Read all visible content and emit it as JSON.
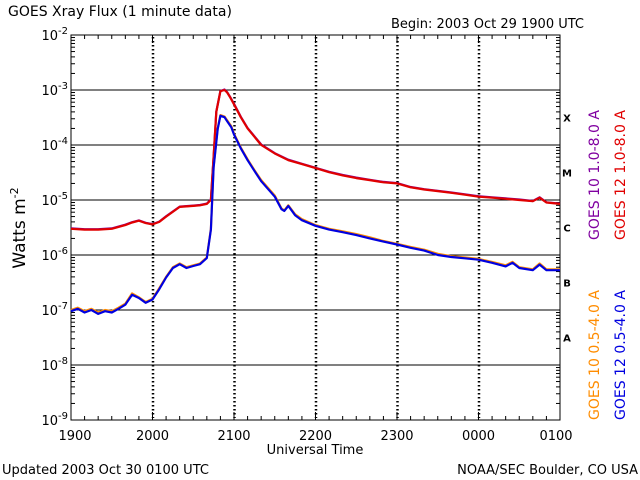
{
  "chart_data": {
    "type": "line",
    "title": "GOES Xray Flux (1 minute data)",
    "begin_label": "Begin: 2003 Oct 29 1900 UTC",
    "ylabel": "Watts m",
    "ylabel_sup": "-2",
    "xlabel": "Universal Time",
    "footer_left": "Updated 2003 Oct 30 0100 UTC",
    "footer_right": "NOAA/SEC Boulder, CO USA",
    "log_scale": true,
    "ylim": [
      1e-09,
      0.01
    ],
    "xlim": [
      0,
      360
    ],
    "x_ticks": [
      {
        "x": 0,
        "label": "1900"
      },
      {
        "x": 60,
        "label": "2000"
      },
      {
        "x": 120,
        "label": "2100"
      },
      {
        "x": 180,
        "label": "2200"
      },
      {
        "x": 240,
        "label": "2300"
      },
      {
        "x": 300,
        "label": "0000"
      },
      {
        "x": 360,
        "label": "0100"
      }
    ],
    "y_ticks": [
      {
        "exp": -9,
        "label": "10",
        "sup": "-9"
      },
      {
        "exp": -8,
        "label": "10",
        "sup": "-8"
      },
      {
        "exp": -7,
        "label": "10",
        "sup": "-7"
      },
      {
        "exp": -6,
        "label": "10",
        "sup": "-6"
      },
      {
        "exp": -5,
        "label": "10",
        "sup": "-5"
      },
      {
        "exp": -4,
        "label": "10",
        "sup": "-4"
      },
      {
        "exp": -3,
        "label": "10",
        "sup": "-3"
      },
      {
        "exp": -2,
        "label": "10",
        "sup": "-2"
      }
    ],
    "flare_classes": [
      {
        "label": "A",
        "center_exp": -7.5
      },
      {
        "label": "B",
        "center_exp": -6.5
      },
      {
        "label": "C",
        "center_exp": -5.5
      },
      {
        "label": "M",
        "center_exp": -4.5
      },
      {
        "label": "X",
        "center_exp": -3.5
      }
    ],
    "gridlines_exp": [
      -8,
      -7,
      -6,
      -5,
      -4,
      -3
    ],
    "grid": true,
    "legend": [
      {
        "text": "GOES 10 1.0-8.0 A",
        "color": "#8000a0",
        "slot": "upper-left"
      },
      {
        "text": "GOES 12 1.0-8.0 A",
        "color": "#e00000",
        "slot": "upper-right"
      },
      {
        "text": "GOES 10 0.5-4.0 A",
        "color": "#ff8c00",
        "slot": "lower-left"
      },
      {
        "text": "GOES 12 0.5-4.0 A",
        "color": "#0000e0",
        "slot": "lower-right"
      }
    ],
    "series": [
      {
        "name": "GOES 12 1.0-8.0 A",
        "color": "#e00000",
        "x": [
          0,
          10,
          20,
          30,
          40,
          45,
          50,
          55,
          60,
          65,
          70,
          80,
          90,
          95,
          100,
          103,
          105,
          107,
          110,
          113,
          115,
          117,
          120,
          125,
          130,
          140,
          150,
          160,
          170,
          180,
          190,
          200,
          210,
          220,
          230,
          240,
          250,
          260,
          270,
          280,
          290,
          300,
          310,
          320,
          330,
          340,
          345,
          350,
          360
        ],
        "y": [
          3e-06,
          2.9e-06,
          2.9e-06,
          3e-06,
          3.5e-06,
          3.9e-06,
          4.2e-06,
          3.8e-06,
          3.6e-06,
          4e-06,
          5e-06,
          7.5e-06,
          7.8e-06,
          8e-06,
          8.5e-06,
          1e-05,
          6e-05,
          0.0004,
          0.00095,
          0.001,
          0.0009,
          0.00075,
          0.00055,
          0.00032,
          0.0002,
          0.0001,
          7e-05,
          5.3e-05,
          4.5e-05,
          3.8e-05,
          3.2e-05,
          2.8e-05,
          2.5e-05,
          2.3e-05,
          2.1e-05,
          2e-05,
          1.7e-05,
          1.55e-05,
          1.45e-05,
          1.35e-05,
          1.25e-05,
          1.15e-05,
          1.1e-05,
          1.05e-05,
          1e-05,
          9.5e-06,
          1.1e-05,
          9e-06,
          8.5e-06
        ]
      },
      {
        "name": "GOES 10 1.0-8.0 A",
        "color": "#8000a0",
        "x": [
          0,
          10,
          20,
          30,
          40,
          45,
          50,
          55,
          60,
          65,
          70,
          80,
          90,
          95,
          100,
          103,
          105,
          107,
          110,
          113,
          115,
          117,
          120,
          125,
          130,
          140,
          150,
          160,
          170,
          180,
          190,
          200,
          210,
          220,
          230,
          240,
          250,
          260,
          270,
          280,
          290,
          300,
          310,
          320,
          330,
          340,
          345,
          350,
          360
        ],
        "y": [
          3.05e-06,
          2.95e-06,
          2.95e-06,
          3.05e-06,
          3.55e-06,
          3.95e-06,
          4.25e-06,
          3.85e-06,
          3.65e-06,
          4.05e-06,
          5.05e-06,
          7.6e-06,
          7.9e-06,
          8.1e-06,
          8.6e-06,
          1.02e-05,
          6.1e-05,
          0.000405,
          0.00096,
          0.00102,
          0.00091,
          0.00076,
          0.00056,
          0.000325,
          0.000203,
          0.000102,
          7.1e-05,
          5.4e-05,
          4.55e-05,
          3.85e-05,
          3.25e-05,
          2.85e-05,
          2.55e-05,
          2.33e-05,
          2.13e-05,
          2.03e-05,
          1.72e-05,
          1.57e-05,
          1.47e-05,
          1.37e-05,
          1.27e-05,
          1.17e-05,
          1.12e-05,
          1.07e-05,
          1.02e-05,
          9.6e-06,
          1.12e-05,
          9.1e-06,
          8.6e-06
        ]
      },
      {
        "name": "GOES 10 0.5-4.0 A",
        "color": "#ff8c00",
        "x": [
          0,
          5,
          10,
          15,
          20,
          25,
          30,
          35,
          40,
          45,
          50,
          55,
          60,
          65,
          70,
          75,
          80,
          85,
          90,
          95,
          100,
          103,
          105,
          108,
          110,
          113,
          115,
          118,
          120,
          125,
          130,
          135,
          140,
          150,
          155,
          157,
          160,
          165,
          170,
          180,
          190,
          200,
          210,
          220,
          230,
          240,
          250,
          260,
          270,
          280,
          290,
          300,
          310,
          320,
          325,
          330,
          340,
          345,
          350,
          360
        ],
        "y": [
          1e-07,
          1.1e-07,
          9.5e-08,
          1.05e-07,
          9e-08,
          1e-07,
          9.5e-08,
          1.1e-07,
          1.3e-07,
          2e-07,
          1.7e-07,
          1.4e-07,
          1.6e-07,
          2.5e-07,
          4e-07,
          6e-07,
          7e-07,
          6e-07,
          6.5e-07,
          7e-07,
          9e-07,
          3e-06,
          4e-05,
          0.0002,
          0.00035,
          0.00033,
          0.00028,
          0.00022,
          0.00016,
          9e-05,
          5.5e-05,
          3.5e-05,
          2.3e-05,
          1.2e-05,
          7e-06,
          6.5e-06,
          8e-06,
          5.5e-06,
          4.5e-06,
          3.5e-06,
          3e-06,
          2.7e-06,
          2.4e-06,
          2.1e-06,
          1.8e-06,
          1.6e-06,
          1.4e-06,
          1.25e-06,
          1.05e-06,
          9.5e-07,
          9e-07,
          8.5e-07,
          7.5e-07,
          6.5e-07,
          7.5e-07,
          6e-07,
          5.5e-07,
          7e-07,
          5.5e-07,
          5.5e-07
        ]
      },
      {
        "name": "GOES 12 0.5-4.0 A",
        "color": "#0000e0",
        "x": [
          0,
          5,
          10,
          15,
          20,
          25,
          30,
          35,
          40,
          45,
          50,
          55,
          60,
          65,
          70,
          75,
          80,
          85,
          90,
          95,
          100,
          103,
          105,
          108,
          110,
          113,
          115,
          118,
          120,
          125,
          130,
          135,
          140,
          150,
          155,
          157,
          160,
          165,
          170,
          180,
          190,
          200,
          210,
          220,
          230,
          240,
          250,
          260,
          270,
          280,
          290,
          300,
          310,
          320,
          325,
          330,
          340,
          345,
          350,
          360
        ],
        "y": [
          9.5e-08,
          1.05e-07,
          9e-08,
          1e-07,
          8.5e-08,
          9.5e-08,
          9e-08,
          1.05e-07,
          1.25e-07,
          1.9e-07,
          1.65e-07,
          1.35e-07,
          1.55e-07,
          2.4e-07,
          3.9e-07,
          5.8e-07,
          6.8e-07,
          5.8e-07,
          6.3e-07,
          6.8e-07,
          8.8e-07,
          2.9e-06,
          3.9e-05,
          0.000195,
          0.00034,
          0.00032,
          0.00027,
          0.00021,
          0.000155,
          8.7e-05,
          5.3e-05,
          3.4e-05,
          2.2e-05,
          1.15e-05,
          6.8e-06,
          6.3e-06,
          7.8e-06,
          5.3e-06,
          4.3e-06,
          3.4e-06,
          2.9e-06,
          2.6e-06,
          2.3e-06,
          2e-06,
          1.75e-06,
          1.55e-06,
          1.35e-06,
          1.2e-06,
          1e-06,
          9.2e-07,
          8.7e-07,
          8.2e-07,
          7.2e-07,
          6.2e-07,
          7.2e-07,
          5.8e-07,
          5.3e-07,
          6.7e-07,
          5.3e-07,
          5.3e-07
        ]
      }
    ]
  }
}
